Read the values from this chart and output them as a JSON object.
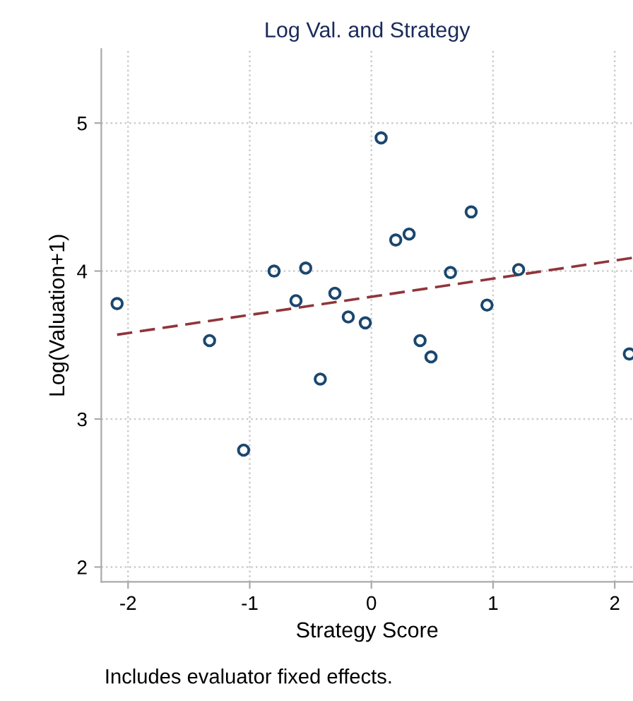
{
  "chart_data": {
    "type": "scatter",
    "title": "Log Val. and Strategy",
    "xlabel": "Strategy Score",
    "ylabel": "Log(Valuation+1)",
    "annotations": [
      "Includes evaluator fixed effects."
    ],
    "xlim": [
      -2.22,
      2.15
    ],
    "ylim": [
      1.9,
      5.5
    ],
    "xticks": [
      -2,
      -1,
      0,
      1,
      2
    ],
    "yticks": [
      2,
      3,
      4,
      5
    ],
    "grid": true,
    "series": [
      {
        "marker": "circle",
        "color": "#1a476f",
        "x": [
          -2.09,
          -1.33,
          -1.05,
          -0.8,
          -0.62,
          -0.54,
          -0.42,
          -0.3,
          -0.19,
          -0.05,
          0.08,
          0.2,
          0.31,
          0.4,
          0.49,
          0.65,
          0.82,
          0.95,
          1.21,
          2.12
        ],
        "values": [
          3.78,
          3.53,
          2.79,
          4.0,
          3.8,
          4.02,
          3.27,
          3.85,
          3.69,
          3.65,
          4.9,
          4.21,
          4.25,
          3.53,
          3.42,
          3.99,
          4.4,
          3.77,
          4.01,
          3.44
        ]
      },
      {
        "type": "line",
        "color": "#90353b",
        "line_style": "dashed",
        "x": [
          -2.09,
          2.15
        ],
        "values": [
          3.57,
          4.09
        ]
      }
    ]
  }
}
